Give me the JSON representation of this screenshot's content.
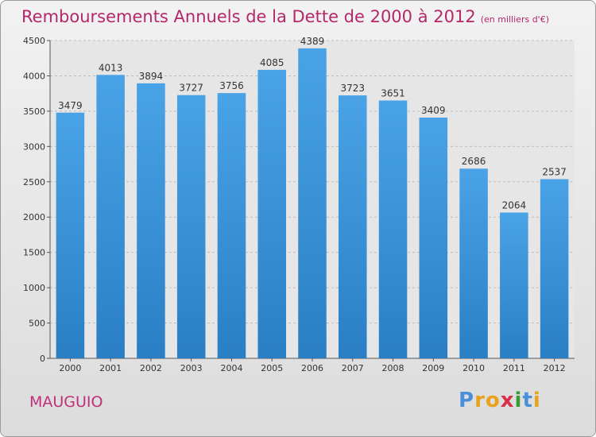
{
  "chart_data": {
    "type": "bar",
    "title": "Remboursements Annuels de la Dette de 2000 à 2012",
    "unit_note": "(en milliers d'€)",
    "categories": [
      "2000",
      "2001",
      "2002",
      "2003",
      "2004",
      "2005",
      "2006",
      "2007",
      "2008",
      "2009",
      "2010",
      "2011",
      "2012"
    ],
    "values": [
      3479,
      4013,
      3894,
      3727,
      3756,
      4085,
      4389,
      3723,
      3651,
      3409,
      2686,
      2064,
      2537
    ],
    "ylim": [
      0,
      4500
    ],
    "yticks": [
      0,
      500,
      1000,
      1500,
      2000,
      2500,
      3000,
      3500,
      4000,
      4500
    ],
    "grid": true,
    "bar_color": "#4aa3e6",
    "title_color": "#b4286a"
  },
  "place": "MAUGUIO",
  "logo": {
    "letters": [
      "P",
      "r",
      "o",
      "x",
      "i",
      "t",
      "i"
    ],
    "colors": [
      "#4a90d9",
      "#e8a21c",
      "#e8a21c",
      "#d9304a",
      "#3a9a3a",
      "#4a90d9",
      "#e8a21c"
    ]
  }
}
